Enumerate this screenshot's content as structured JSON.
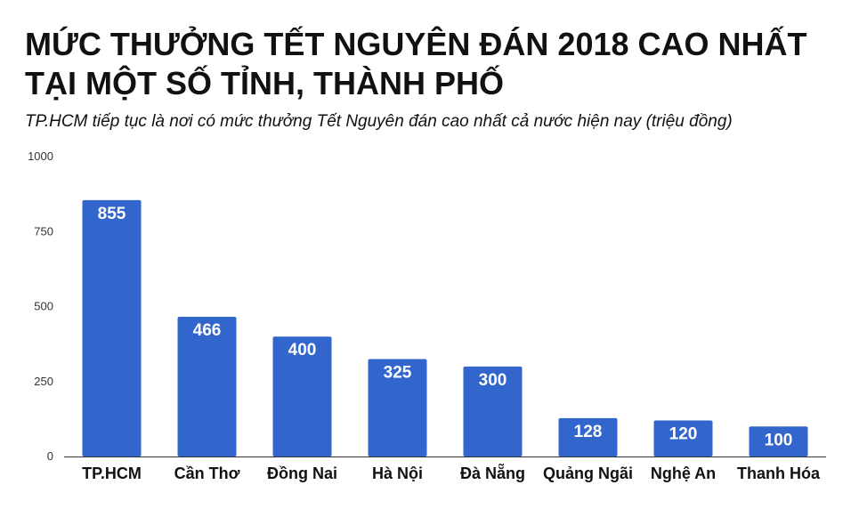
{
  "title_line1": "MỨC THƯỞNG TẾT NGUYÊN ĐÁN 2018 CAO NHẤT",
  "title_line2": "TẠI MỘT SỐ TỈNH, THÀNH PHỐ",
  "subtitle": "TP.HCM tiếp tục là nơi có mức thưởng Tết Nguyên đán cao nhất cả nước hiện nay (triệu đồng)",
  "colors": {
    "bar": "#3366cc",
    "axis": "#333333",
    "value_label": "#ffffff"
  },
  "chart_data": {
    "type": "bar",
    "title": "MỨC THƯỞNG TẾT NGUYÊN ĐÁN 2018 CAO NHẤT TẠI MỘT SỐ TỈNH, THÀNH PHỐ",
    "subtitle": "TP.HCM tiếp tục là nơi có mức thưởng Tết Nguyên đán cao nhất cả nước hiện nay (triệu đồng)",
    "categories": [
      "TP.HCM",
      "Cần Thơ",
      "Đồng Nai",
      "Hà Nội",
      "Đà Nẵng",
      "Quảng Ngãi",
      "Nghệ An",
      "Thanh Hóa"
    ],
    "values": [
      855,
      466,
      400,
      325,
      300,
      128,
      120,
      100
    ],
    "xlabel": "",
    "ylabel": "",
    "ylim": [
      0,
      1000
    ],
    "yticks": [
      0,
      250,
      500,
      750,
      1000
    ],
    "grid": false,
    "data_labels": true
  }
}
